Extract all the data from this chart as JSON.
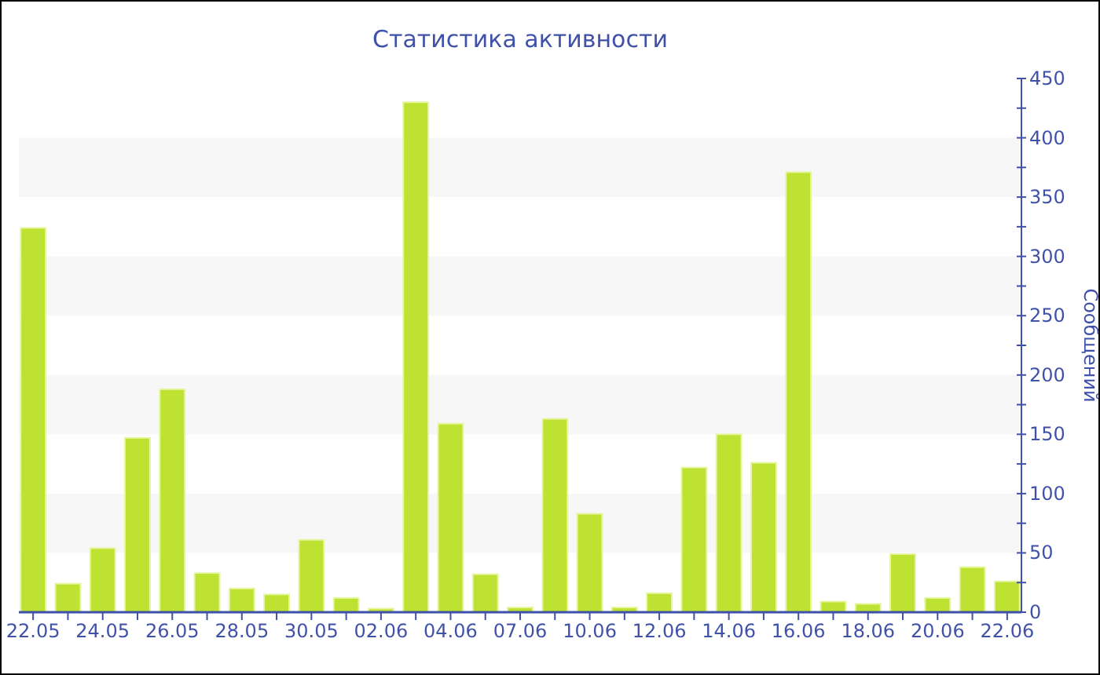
{
  "chart_data": {
    "type": "bar",
    "title": "Статистика активности",
    "ylabel": "Сообщений",
    "categories": [
      "22.05",
      null,
      "24.05",
      null,
      "26.05",
      null,
      "28.05",
      null,
      "30.05",
      null,
      "02.06",
      null,
      "04.06",
      null,
      "07.06",
      null,
      "10.06",
      null,
      "12.06",
      null,
      "14.06",
      null,
      "16.06",
      null,
      "18.06",
      null,
      "20.06",
      null,
      "22.06"
    ],
    "values": [
      324,
      24,
      54,
      147,
      188,
      33,
      20,
      15,
      61,
      12,
      3,
      430,
      159,
      32,
      4,
      163,
      83,
      4,
      16,
      122,
      150,
      126,
      371,
      9,
      7,
      49,
      12,
      38,
      26
    ],
    "color": "#bde232",
    "ylim": [
      0,
      450
    ],
    "yticks": [
      0,
      {
        "value": 25,
        "label": null
      },
      50,
      {
        "value": 75,
        "label": null
      },
      100,
      {
        "value": 125,
        "label": null
      },
      150,
      {
        "value": 175,
        "label": null
      },
      200,
      {
        "value": 225,
        "label": null
      },
      250,
      {
        "value": 275,
        "label": null
      },
      300,
      {
        "value": 325,
        "label": null
      },
      350,
      {
        "value": 375,
        "label": null
      },
      400,
      {
        "value": 425,
        "label": null
      },
      450
    ],
    "bands": [
      {
        "axis": "y",
        "from": 50,
        "to": 100,
        "color": "#f7f7f7"
      },
      {
        "axis": "y",
        "from": 150,
        "to": 200,
        "color": "#f7f7f7"
      },
      {
        "axis": "y",
        "from": 250,
        "to": 300,
        "color": "#f7f7f7"
      },
      {
        "axis": "y",
        "from": 350,
        "to": 400,
        "color": "#f7f7f7"
      }
    ]
  }
}
